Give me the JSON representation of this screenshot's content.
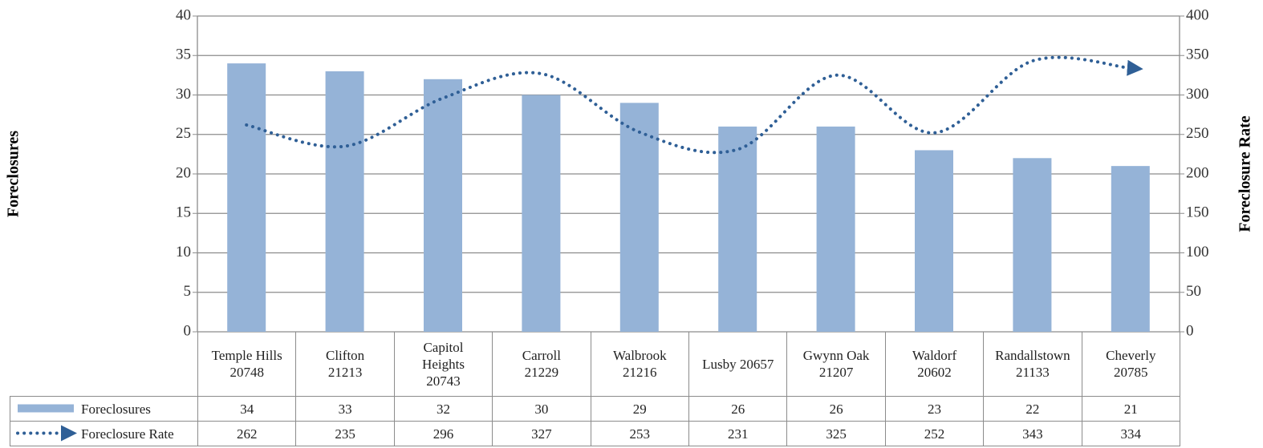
{
  "chart_data": {
    "type": "bar",
    "categories": [
      "Temple Hills\n20748",
      "Clifton\n21213",
      "Capitol\nHeights\n20743",
      "Carroll\n21229",
      "Walbrook\n21216",
      "Lusby 20657",
      "Gwynn Oak\n21207",
      "Waldorf\n20602",
      "Randallstown\n21133",
      "Cheverly\n20785"
    ],
    "series": [
      {
        "name": "Foreclosures",
        "type": "bar",
        "color": "#95b3d7",
        "values": [
          34,
          33,
          32,
          30,
          29,
          26,
          26,
          23,
          22,
          21
        ]
      },
      {
        "name": "Foreclosure Rate",
        "type": "line",
        "axis": "y2",
        "color": "#2f5f96",
        "line_style": "dotted",
        "values": [
          262,
          235,
          296,
          327,
          253,
          231,
          325,
          252,
          343,
          334
        ]
      }
    ],
    "ylabel": "Foreclosures",
    "y2label": "Foreclosure Rate",
    "ylim": [
      0,
      40
    ],
    "yticks": [
      0,
      5,
      10,
      15,
      20,
      25,
      30,
      35,
      40
    ],
    "y2lim": [
      0,
      400
    ],
    "y2ticks": [
      0,
      50,
      100,
      150,
      200,
      250,
      300,
      350,
      400
    ],
    "grid": true,
    "data_table": true
  }
}
